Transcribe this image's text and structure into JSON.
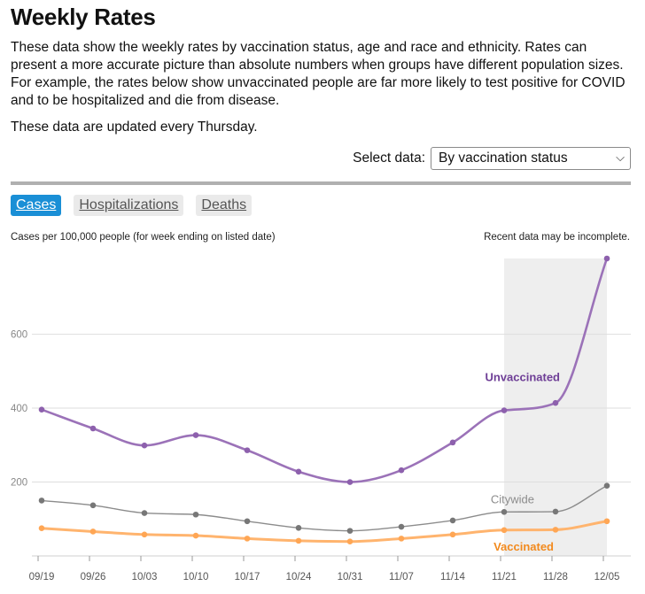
{
  "title": "Weekly Rates",
  "intro": "These data show the weekly rates by vaccination status, age and race and ethnicity. Rates can present a more accurate picture than absolute numbers when groups have different population sizes. For example, the rates below show unvaccinated people are far more likely to test positive for COVID and to be hospitalized and die from disease.",
  "updated_note": "These data are updated every Thursday.",
  "select": {
    "label": "Select data:",
    "value": "By vaccination status"
  },
  "tabs": [
    {
      "label": "Cases",
      "active": true
    },
    {
      "label": "Hospitalizations",
      "active": false
    },
    {
      "label": "Deaths",
      "active": false
    }
  ],
  "chart_data": {
    "type": "line",
    "subtitle": "Cases per 100,000 people (for week ending on listed date)",
    "note": "Recent data may be incomplete.",
    "categories": [
      "09/19",
      "09/26",
      "10/03",
      "10/10",
      "10/17",
      "10/24",
      "10/31",
      "11/07",
      "11/14",
      "11/21",
      "11/28",
      "12/05"
    ],
    "yticks": [
      200,
      400,
      600
    ],
    "ylim": [
      0,
      805
    ],
    "incomplete_from": "11/21",
    "grid": true,
    "series": [
      {
        "name": "Unvaccinated",
        "color": "#9b72b8",
        "label_color": "#6e3e96",
        "width": 2.6,
        "values": [
          396,
          345,
          299,
          327,
          286,
          228,
          200,
          232,
          307,
          394,
          414,
          805
        ]
      },
      {
        "name": "Citywide",
        "color": "#8c8c8c",
        "label_color": "#8c8c8c",
        "width": 1.4,
        "values": [
          150,
          137,
          116,
          112,
          94,
          76,
          68,
          79,
          96,
          119,
          120,
          190
        ]
      },
      {
        "name": "Vaccinated",
        "color": "#ffb46e",
        "label_color": "#f28a1e",
        "width": 3,
        "values": [
          75,
          66,
          58,
          55,
          47,
          41,
          39,
          47,
          58,
          70,
          71,
          94
        ]
      }
    ]
  }
}
